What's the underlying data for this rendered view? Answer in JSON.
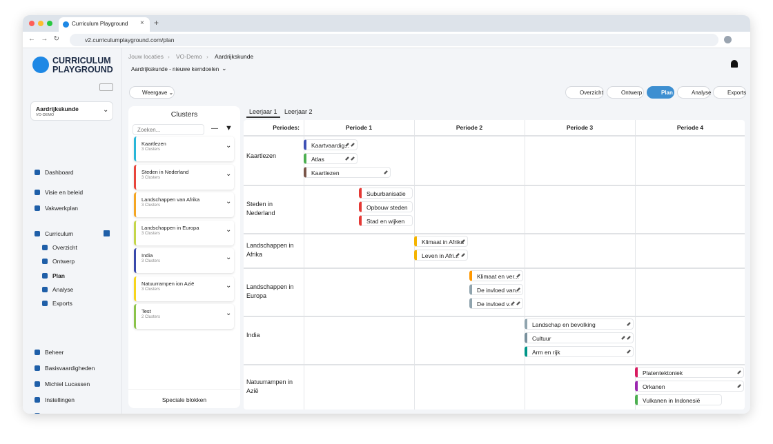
{
  "browser": {
    "tab_title": "Curriculum Playground",
    "url": "v2.curriculumplayground.com/plan"
  },
  "logo": [
    "CURRICULUM",
    "PLAYGROUND"
  ],
  "breadcrumb": [
    "Jouw locaties",
    "VO-Demo",
    "Aardrijkskunde"
  ],
  "subject_select": "Aardrijkskunde - nieuwe kerndoelen",
  "view_button": "Weergave",
  "tabs": [
    "Overzicht",
    "Ontwerp",
    "Plan",
    "Analyse",
    "Exports"
  ],
  "active_tab": 2,
  "school": {
    "name": "Aardrijkskunde",
    "code": "VO-DEMO"
  },
  "nav_top": [
    "Dashboard",
    "Visie en beleid",
    "Vakwerkplan"
  ],
  "nav_curriculum": {
    "label": "Curriculum",
    "children": [
      "Overzicht",
      "Ontwerp",
      "Plan",
      "Analyse",
      "Exports"
    ],
    "active_child": 2
  },
  "nav_bottom": [
    "Beheer",
    "Basisvaardigheden",
    "Michiel Lucassen",
    "Instellingen",
    "Log uit"
  ],
  "clusters": {
    "title": "Clusters",
    "search_placeholder": "Zoeken...",
    "footer": "Speciale blokken",
    "items": [
      {
        "name": "Kaartlezen",
        "count": "3 Clusters",
        "color": "#29b6d8"
      },
      {
        "name": "Steden in Nederland",
        "count": "3 Clusters",
        "color": "#e8453c"
      },
      {
        "name": "Landschappen van Afrika",
        "count": "3 Clusters",
        "color": "#f5a623"
      },
      {
        "name": "Landschappen in Europa",
        "count": "3 Clusters",
        "color": "#c5d64a"
      },
      {
        "name": "India",
        "count": "3 Clusters",
        "color": "#3949ab"
      },
      {
        "name": "Natuurrampen ion Azië",
        "count": "3 Clusters",
        "color": "#f7d51d"
      },
      {
        "name": "Test",
        "count": "2 Clusters",
        "color": "#8bc34a"
      }
    ]
  },
  "years": [
    "Leerjaar 1",
    "Leerjaar 2"
  ],
  "grid": {
    "header": "Periodes:",
    "periods": [
      "Periode 1",
      "Periode 2",
      "Periode 3",
      "Periode 4"
    ],
    "rows": [
      {
        "name": "Kaartlezen",
        "blocks": [
          {
            "label": "Kaartvaardig...",
            "color": "#3f51b5"
          },
          {
            "label": "Atlas",
            "color": "#4caf50"
          },
          {
            "label": "Kaartlezen",
            "color": "#795548"
          }
        ]
      },
      {
        "name": "Steden in Nederland",
        "blocks": [
          {
            "label": "Suburbanisatie",
            "color": "#e53935"
          },
          {
            "label": "Opbouw steden",
            "color": "#e53935"
          },
          {
            "label": "Stad en wijken",
            "color": "#e53935"
          }
        ]
      },
      {
        "name": "Landschappen in Afrika",
        "blocks": [
          {
            "label": "Klimaat in Afrika",
            "color": "#f5b400"
          },
          {
            "label": "Leven in Afri...",
            "color": "#f5b400"
          }
        ]
      },
      {
        "name": "Landschappen in Europa",
        "blocks": [
          {
            "label": "Klimaat en ver...",
            "color": "#ff9800"
          },
          {
            "label": "De invloed van...",
            "color": "#90a4ae"
          },
          {
            "label": "De invloed v...",
            "color": "#90a4ae"
          }
        ]
      },
      {
        "name": "India",
        "blocks": [
          {
            "label": "Landschap en bevolking",
            "color": "#90a4ae"
          },
          {
            "label": "Cultuur",
            "color": "#78909c"
          },
          {
            "label": "Arm en rijk",
            "color": "#009688"
          }
        ]
      },
      {
        "name": "Natuurrampen in Azië",
        "blocks": [
          {
            "label": "Platentektoniek",
            "color": "#d81b60"
          },
          {
            "label": "Orkanen",
            "color": "#9c27b0"
          },
          {
            "label": "Vulkanen in Indonesië",
            "color": "#4caf50"
          }
        ]
      }
    ]
  }
}
